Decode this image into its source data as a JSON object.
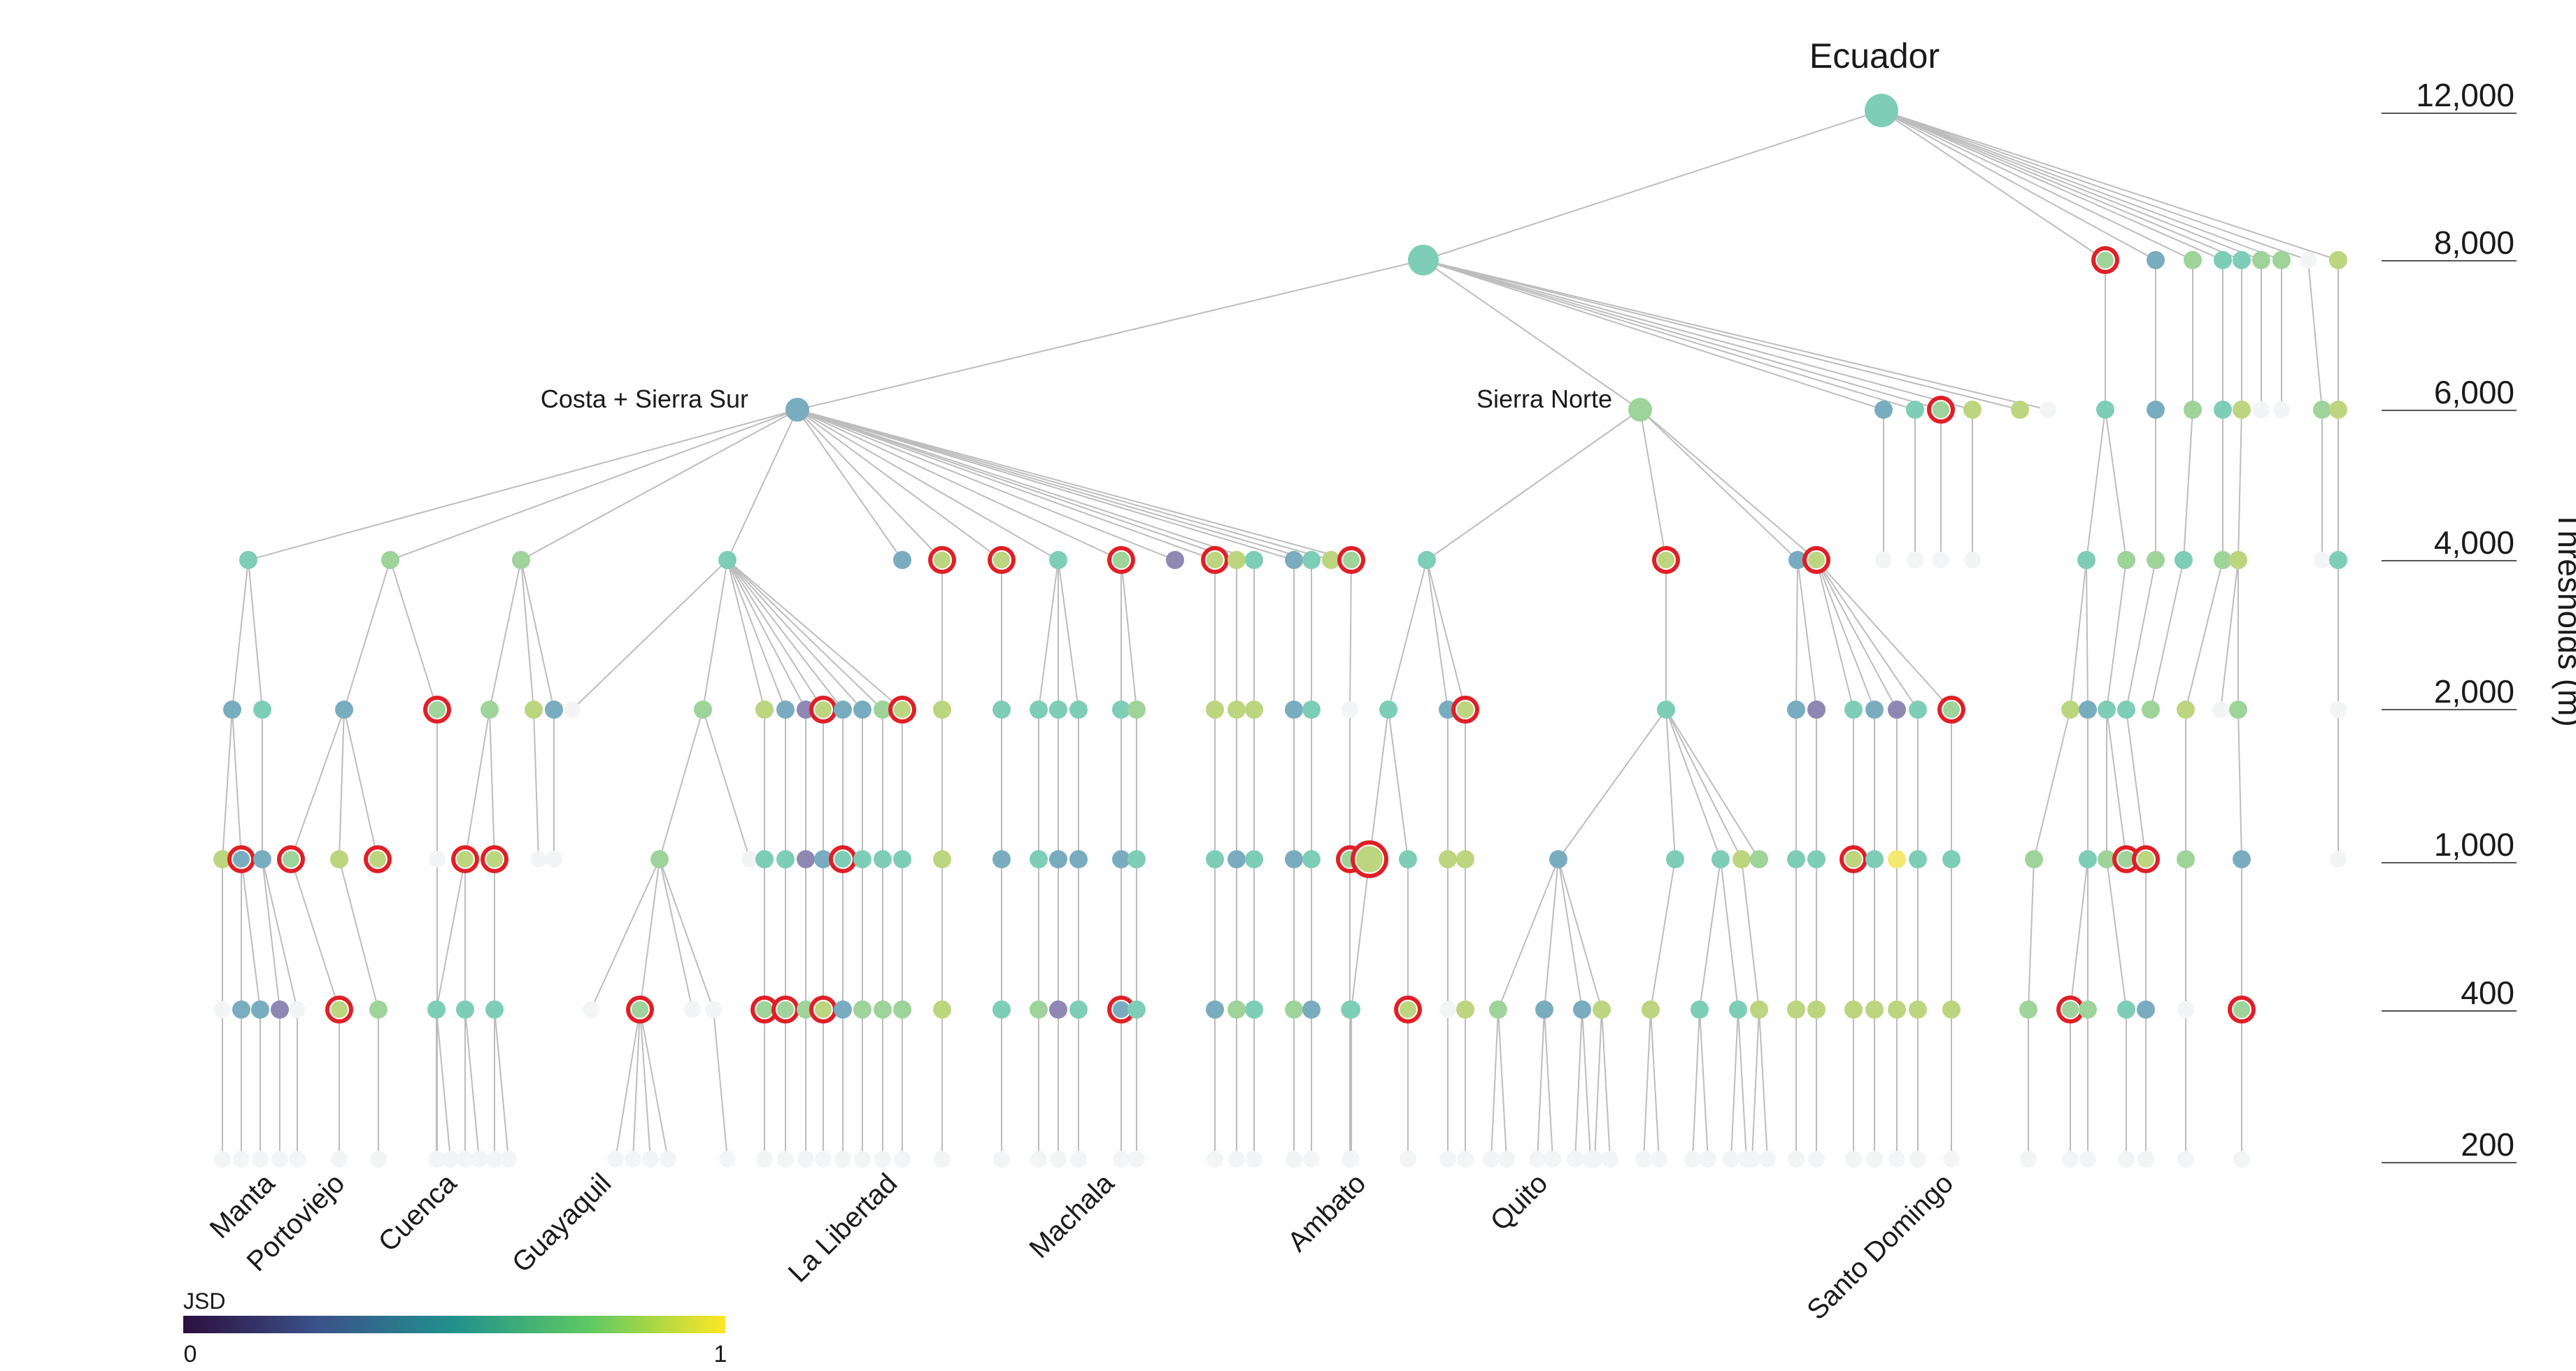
{
  "title": "Ecuador",
  "axis": {
    "label": "Thresholds (m)",
    "levels": [
      "12,000",
      "8,000",
      "6,000",
      "4,000",
      "2,000",
      "1,000",
      "400",
      "200"
    ]
  },
  "regions": {
    "costa": "Costa + Sierra Sur",
    "sierra": "Sierra Norte"
  },
  "cities": [
    "Manta",
    "Portoviejo",
    "Cuenca",
    "Guayaquil",
    "La Libertad",
    "Machala",
    "Ambato",
    "Quito",
    "Santo Domingo"
  ],
  "legend": {
    "title": "JSD",
    "min": "0",
    "max": "1",
    "colors": [
      "#2b0f3d",
      "#3b528b",
      "#21918c",
      "#5ec962",
      "#fde725"
    ]
  },
  "palette": {
    "teal": "#7ecdb6",
    "blue": "#7aacbf",
    "slate": "#7d97b5",
    "purple": "#8f87b4",
    "green": "#9ed39a",
    "lime": "#bcd57f",
    "yellow": "#f2ea6e",
    "ghost": "#f2f4f6",
    "highlight": "#e01f26"
  }
}
